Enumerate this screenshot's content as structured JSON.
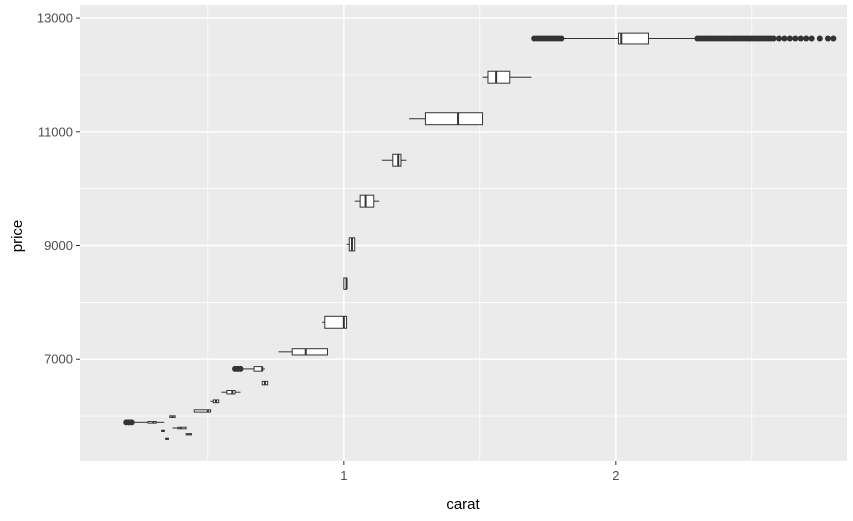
{
  "chart_data": {
    "type": "boxplot",
    "title": "",
    "xlabel": "carat",
    "ylabel": "price",
    "xlim": [
      0.03,
      2.85
    ],
    "ylim": [
      5210,
      13230
    ],
    "x_ticks": [
      {
        "value": 1,
        "label": "1"
      },
      {
        "value": 2,
        "label": "2"
      }
    ],
    "y_ticks": [
      {
        "value": 7000,
        "label": "7000"
      },
      {
        "value": 9000,
        "label": "9000"
      },
      {
        "value": 11000,
        "label": "11000"
      },
      {
        "value": 13000,
        "label": "13000"
      }
    ],
    "x_minor_gridlines": [
      0.5,
      1.5,
      2.5
    ],
    "y_minor_gridlines": [
      6000,
      8000,
      10000,
      12000
    ],
    "grid": true,
    "colors": {
      "panel": "#ebebeb",
      "grid": "#ffffff",
      "box_fill": "#ffffff",
      "line": "#333333",
      "outlier": "#333333"
    },
    "boxes": [
      {
        "y": 5890,
        "h": 28,
        "q1": 0.28,
        "median": 0.3,
        "q3": 0.31,
        "whisker_low": 0.23,
        "whisker_high": 0.34,
        "outliers_x": [
          0.2,
          0.21,
          0.22
        ]
      },
      {
        "y": 5740,
        "h": 22,
        "q1": 0.33,
        "median": 0.335,
        "q3": 0.34,
        "whisker_low": 0.33,
        "whisker_high": 0.34,
        "outliers_x": []
      },
      {
        "y": 5600,
        "h": 22,
        "q1": 0.345,
        "median": 0.35,
        "q3": 0.355,
        "whisker_low": 0.345,
        "whisker_high": 0.355,
        "outliers_x": []
      },
      {
        "y": 5990,
        "h": 28,
        "q1": 0.36,
        "median": 0.37,
        "q3": 0.38,
        "whisker_low": 0.36,
        "whisker_high": 0.38,
        "outliers_x": []
      },
      {
        "y": 5790,
        "h": 28,
        "q1": 0.39,
        "median": 0.4,
        "q3": 0.42,
        "whisker_low": 0.37,
        "whisker_high": 0.42,
        "outliers_x": []
      },
      {
        "y": 5680,
        "h": 22,
        "q1": 0.42,
        "median": 0.43,
        "q3": 0.44,
        "whisker_low": 0.42,
        "whisker_high": 0.44,
        "outliers_x": []
      },
      {
        "y": 6090,
        "h": 40,
        "q1": 0.45,
        "median": 0.5,
        "q3": 0.51,
        "whisker_low": 0.45,
        "whisker_high": 0.51,
        "outliers_x": []
      },
      {
        "y": 6260,
        "h": 48,
        "q1": 0.52,
        "median": 0.53,
        "q3": 0.54,
        "whisker_low": 0.51,
        "whisker_high": 0.54,
        "outliers_x": []
      },
      {
        "y": 6420,
        "h": 60,
        "q1": 0.57,
        "median": 0.59,
        "q3": 0.6,
        "whisker_low": 0.55,
        "whisker_high": 0.62,
        "outliers_x": []
      },
      {
        "y": 6830,
        "h": 80,
        "q1": 0.67,
        "median": 0.7,
        "q3": 0.7,
        "whisker_low": 0.62,
        "whisker_high": 0.71,
        "outliers_x": [
          0.6,
          0.61,
          0.62
        ]
      },
      {
        "y": 6580,
        "h": 60,
        "q1": 0.7,
        "median": 0.71,
        "q3": 0.72,
        "whisker_low": 0.7,
        "whisker_high": 0.72,
        "outliers_x": []
      },
      {
        "y": 7130,
        "h": 110,
        "q1": 0.81,
        "median": 0.86,
        "q3": 0.94,
        "whisker_low": 0.76,
        "whisker_high": 0.94,
        "outliers_x": []
      },
      {
        "y": 7650,
        "h": 210,
        "q1": 0.93,
        "median": 1.0,
        "q3": 1.01,
        "whisker_low": 0.92,
        "whisker_high": 1.01,
        "outliers_x": []
      },
      {
        "y": 8330,
        "h": 200,
        "q1": 1.0,
        "median": 1.01,
        "q3": 1.01,
        "whisker_low": 1.0,
        "whisker_high": 1.01,
        "outliers_x": []
      },
      {
        "y": 9020,
        "h": 230,
        "q1": 1.02,
        "median": 1.03,
        "q3": 1.04,
        "whisker_low": 1.01,
        "whisker_high": 1.04,
        "outliers_x": []
      },
      {
        "y": 9780,
        "h": 210,
        "q1": 1.06,
        "median": 1.08,
        "q3": 1.11,
        "whisker_low": 1.04,
        "whisker_high": 1.13,
        "outliers_x": []
      },
      {
        "y": 10500,
        "h": 210,
        "q1": 1.18,
        "median": 1.2,
        "q3": 1.21,
        "whisker_low": 1.14,
        "whisker_high": 1.23,
        "outliers_x": []
      },
      {
        "y": 11230,
        "h": 210,
        "q1": 1.3,
        "median": 1.42,
        "q3": 1.51,
        "whisker_low": 1.24,
        "whisker_high": 1.51,
        "outliers_x": []
      },
      {
        "y": 11960,
        "h": 210,
        "q1": 1.53,
        "median": 1.56,
        "q3": 1.61,
        "whisker_low": 1.51,
        "whisker_high": 1.69,
        "outliers_x": []
      },
      {
        "y": 12640,
        "h": 190,
        "q1": 2.01,
        "median": 2.02,
        "q3": 2.12,
        "whisker_low": 1.72,
        "whisker_high": 2.3,
        "outliers_x": [
          1.7,
          1.71,
          1.72,
          1.73,
          1.74,
          1.75,
          1.76,
          1.77,
          1.78,
          1.79,
          1.8,
          2.3,
          2.31,
          2.32,
          2.33,
          2.34,
          2.35,
          2.36,
          2.37,
          2.38,
          2.39,
          2.4,
          2.41,
          2.42,
          2.43,
          2.44,
          2.45,
          2.46,
          2.47,
          2.48,
          2.49,
          2.5,
          2.51,
          2.52,
          2.53,
          2.54,
          2.55,
          2.56,
          2.57,
          2.58,
          2.6,
          2.62,
          2.64,
          2.66,
          2.68,
          2.7,
          2.72,
          2.75,
          2.78,
          2.8
        ]
      }
    ]
  }
}
